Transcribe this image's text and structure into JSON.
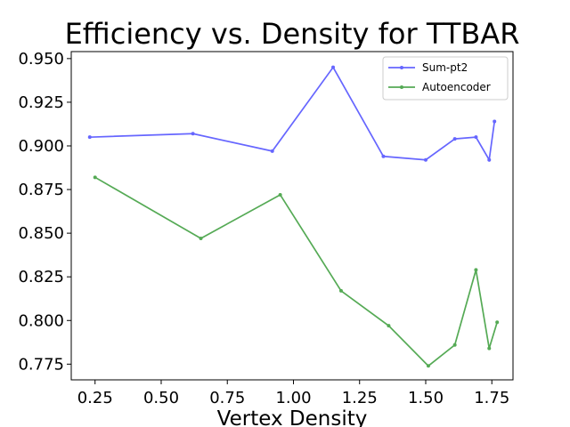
{
  "chart_data": {
    "type": "line",
    "title": "Efficiency vs. Density for TTBAR",
    "xlabel": "Vertex Density",
    "ylabel": "",
    "xlim": [
      0.16,
      1.83
    ],
    "ylim": [
      0.766,
      0.954
    ],
    "xticks": [
      0.25,
      0.5,
      0.75,
      1.0,
      1.25,
      1.5,
      1.75
    ],
    "xtick_labels": [
      "0.25",
      "0.50",
      "0.75",
      "1.00",
      "1.25",
      "1.50",
      "1.75"
    ],
    "yticks": [
      0.775,
      0.8,
      0.825,
      0.85,
      0.875,
      0.9,
      0.925,
      0.95
    ],
    "ytick_labels": [
      "0.775",
      "0.800",
      "0.825",
      "0.850",
      "0.875",
      "0.900",
      "0.925",
      "0.950"
    ],
    "grid": false,
    "legend_position": "top-right",
    "series": [
      {
        "name": "Sum-pt2",
        "color": "#6666ff",
        "x": [
          0.23,
          0.62,
          0.92,
          1.15,
          1.34,
          1.5,
          1.61,
          1.69,
          1.74,
          1.76
        ],
        "y": [
          0.905,
          0.907,
          0.897,
          0.945,
          0.894,
          0.892,
          0.904,
          0.905,
          0.892,
          0.914
        ]
      },
      {
        "name": "Autoencoder",
        "color": "#55aa55",
        "x": [
          0.25,
          0.65,
          0.95,
          1.18,
          1.36,
          1.51,
          1.61,
          1.69,
          1.74,
          1.77
        ],
        "y": [
          0.882,
          0.847,
          0.872,
          0.817,
          0.797,
          0.774,
          0.786,
          0.829,
          0.784,
          0.799
        ]
      }
    ]
  }
}
